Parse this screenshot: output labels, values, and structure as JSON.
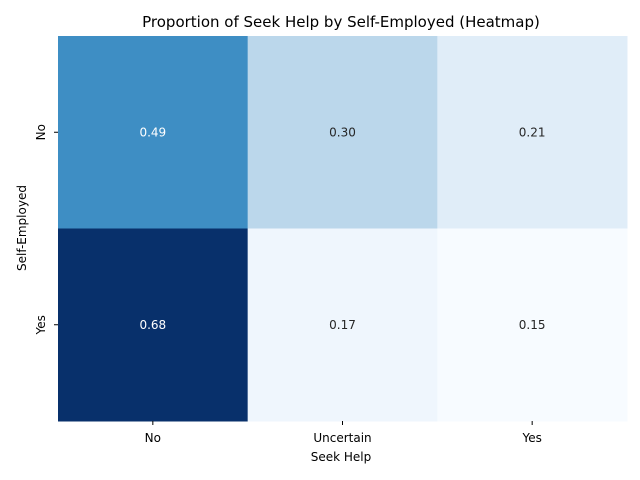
{
  "chart_data": {
    "type": "heatmap",
    "title": "Proportion of Seek Help by Self-Employed (Heatmap)",
    "xlabel": "Seek Help",
    "ylabel": "Self-Employed",
    "x_categories": [
      "No",
      "Uncertain",
      "Yes"
    ],
    "y_categories": [
      "No",
      "Yes"
    ],
    "values": [
      [
        0.49,
        0.3,
        0.21
      ],
      [
        0.68,
        0.17,
        0.15
      ]
    ],
    "value_labels": [
      [
        "0.49",
        "0.30",
        "0.21"
      ],
      [
        "0.68",
        "0.17",
        "0.15"
      ]
    ],
    "colormap": "Blues",
    "colorbar": false,
    "grid": false
  }
}
